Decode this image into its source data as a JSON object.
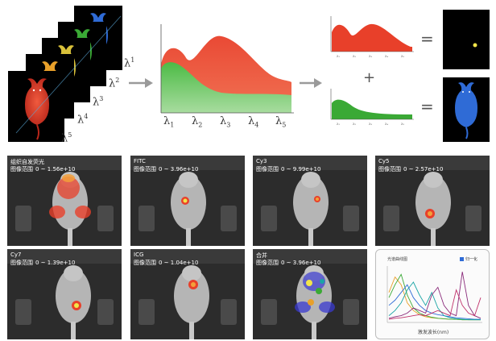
{
  "diagram": {
    "stack_labels": [
      {
        "base": "λ",
        "idx": "1"
      },
      {
        "base": "λ",
        "idx": "2"
      },
      {
        "base": "λ",
        "idx": "3"
      },
      {
        "base": "λ",
        "idx": "4"
      },
      {
        "base": "λ",
        "idx": "5"
      }
    ],
    "axis_labels": [
      {
        "base": "λ",
        "idx": "1"
      },
      {
        "base": "λ",
        "idx": "2"
      },
      {
        "base": "λ",
        "idx": "3"
      },
      {
        "base": "λ",
        "idx": "4"
      },
      {
        "base": "λ",
        "idx": "5"
      }
    ],
    "small_ticks": [
      "λ₁",
      "λ₂",
      "λ₃",
      "λ₄",
      "λ₅"
    ],
    "plus_sign": "+",
    "equals_sign": "=",
    "colors": {
      "red": "#e8402a",
      "green": "#3aa935",
      "blue": "#2f6bd6",
      "yellow": "#f2e54a",
      "orange": "#e8a02a",
      "arrow": "#9a9a9a"
    }
  },
  "panels": [
    {
      "title": "组织自发荧光",
      "range_label": "图像范围",
      "range_value": "0 ~ 1.56e+10"
    },
    {
      "title": "FITC",
      "range_label": "图像范围",
      "range_value": "0 ~ 3.96e+10"
    },
    {
      "title": "Cy3",
      "range_label": "图像范围",
      "range_value": "0 ~ 9.99e+10"
    },
    {
      "title": "Cy5",
      "range_label": "图像范围",
      "range_value": "0 ~ 2.57e+10"
    },
    {
      "title": "Cy7",
      "range_label": "图像范围",
      "range_value": "0 ~ 1.39e+10"
    },
    {
      "title": "ICG",
      "range_label": "图像范围",
      "range_value": "0 ~ 1.04e+10"
    },
    {
      "title": "合并",
      "range_label": "图像范围",
      "range_value": "0 ~ 3.96e+10"
    }
  ],
  "chart_data": {
    "type": "line",
    "title": "光谱曲线图",
    "xlabel": "激发波长(nm)",
    "legend": [
      {
        "name": "归一化",
        "checked": true
      }
    ],
    "x": [
      0,
      1,
      2,
      3,
      4,
      5,
      6,
      7,
      8,
      9,
      10,
      11,
      12,
      13,
      14,
      15
    ],
    "series": [
      {
        "color": "#e8a02a",
        "values": [
          0.55,
          0.85,
          0.7,
          0.35,
          0.2,
          0.12,
          0.08,
          0.06,
          0.05,
          0.04,
          0.03,
          0.03,
          0.02,
          0.02,
          0.02,
          0.02
        ]
      },
      {
        "color": "#3aa935",
        "values": [
          0.45,
          0.7,
          0.9,
          0.5,
          0.25,
          0.15,
          0.1,
          0.07,
          0.05,
          0.04,
          0.03,
          0.03,
          0.02,
          0.02,
          0.02,
          0.02
        ]
      },
      {
        "color": "#2f6bd6",
        "values": [
          0.3,
          0.4,
          0.55,
          0.7,
          0.45,
          0.3,
          0.2,
          0.15,
          0.12,
          0.1,
          0.08,
          0.06,
          0.05,
          0.04,
          0.03,
          0.03
        ]
      },
      {
        "color": "#1aa5a5",
        "values": [
          0.1,
          0.2,
          0.35,
          0.6,
          0.75,
          0.5,
          0.3,
          0.55,
          0.25,
          0.1,
          0.06,
          0.04,
          0.03,
          0.02,
          0.02,
          0.02
        ]
      },
      {
        "color": "#8a2a7a",
        "values": [
          0.05,
          0.08,
          0.1,
          0.15,
          0.25,
          0.2,
          0.15,
          0.5,
          0.65,
          0.3,
          0.15,
          0.1,
          0.95,
          0.3,
          0.1,
          0.05
        ]
      },
      {
        "color": "#c0306a",
        "values": [
          0.03,
          0.05,
          0.06,
          0.08,
          0.1,
          0.12,
          0.1,
          0.15,
          0.2,
          0.15,
          0.1,
          0.6,
          0.3,
          0.15,
          0.1,
          0.45
        ]
      }
    ]
  }
}
